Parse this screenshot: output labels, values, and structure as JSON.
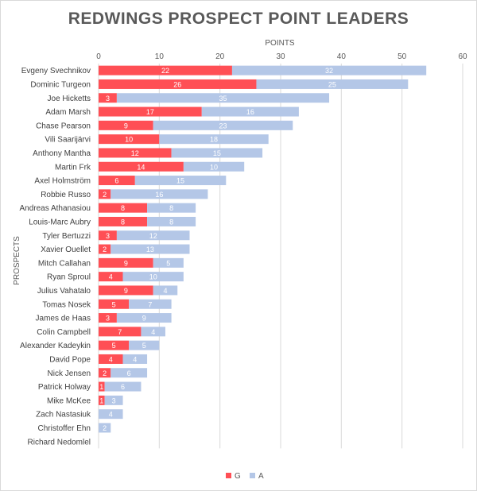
{
  "chart_data": {
    "type": "bar",
    "orientation": "horizontal",
    "stacked": true,
    "title": "REDWINGS PROSPECT POINT LEADERS",
    "xlabel": "POINTS",
    "ylabel": "PROSPECTS",
    "xlim": [
      0,
      60
    ],
    "xticks": [
      0,
      10,
      20,
      30,
      40,
      50,
      60
    ],
    "grid": true,
    "legend_position": "bottom",
    "categories": [
      "Evgeny Svechnikov",
      "Dominic Turgeon",
      "Joe Hicketts",
      "Adam Marsh",
      "Chase Pearson",
      "Vili Saarijärvi",
      "Anthony Mantha",
      "Martin Frk",
      "Axel Holmström",
      "Robbie Russo",
      "Andreas Athanasiou",
      "Louis-Marc Aubry",
      "Tyler Bertuzzi",
      "Xavier Ouellet",
      "Mitch Callahan",
      "Ryan Sproul",
      "Julius Vahatalo",
      "Tomas Nosek",
      "James de Haas",
      "Colin Campbell",
      "Alexander Kadeykin",
      "David Pope",
      "Nick Jensen",
      "Patrick Holway",
      "Mike McKee",
      "Zach Nastasiuk",
      "Christoffer Ehn",
      "Richard Nedomlel"
    ],
    "series": [
      {
        "name": "G",
        "color": "#ff4f55",
        "values": [
          22,
          26,
          3,
          17,
          9,
          10,
          12,
          14,
          6,
          2,
          8,
          8,
          3,
          2,
          9,
          4,
          9,
          5,
          3,
          7,
          5,
          4,
          2,
          1,
          1,
          0,
          0,
          0
        ]
      },
      {
        "name": "A",
        "color": "#b4c7e7",
        "values": [
          32,
          25,
          35,
          16,
          23,
          18,
          15,
          10,
          15,
          16,
          8,
          8,
          12,
          13,
          5,
          10,
          4,
          7,
          9,
          4,
          5,
          4,
          6,
          6,
          3,
          4,
          2,
          0
        ]
      }
    ]
  }
}
